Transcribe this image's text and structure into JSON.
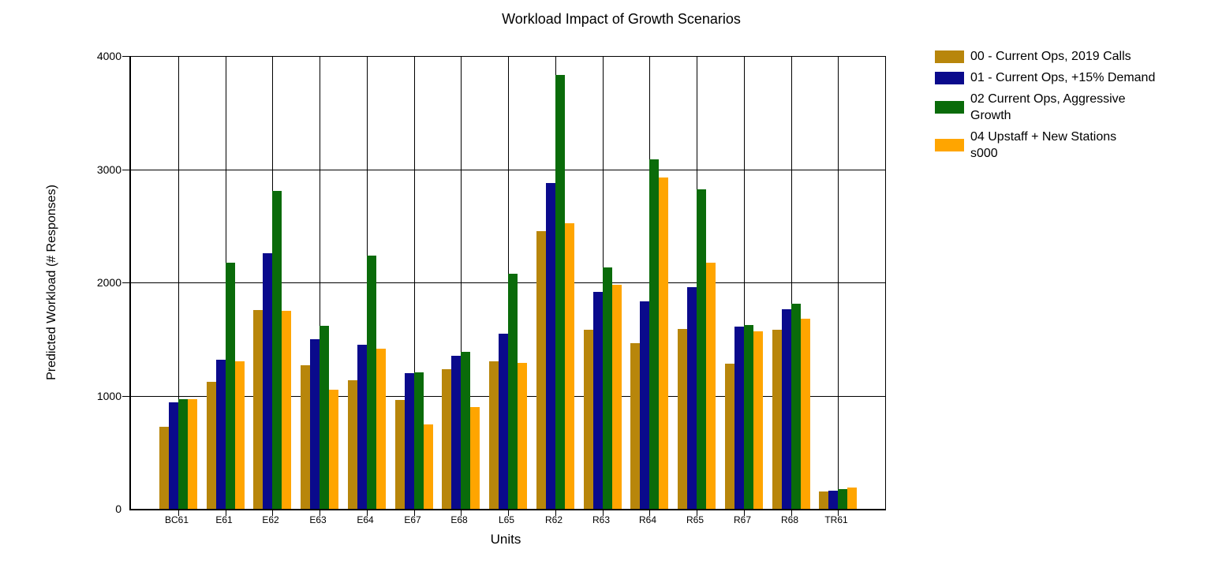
{
  "chart_data": {
    "type": "bar",
    "title": "Workload Impact of Growth Scenarios",
    "xlabel": "Units",
    "ylabel": "Predicted Workload (# Responses)",
    "ylim": [
      0,
      4000
    ],
    "yticks": [
      0,
      1000,
      2000,
      3000,
      4000
    ],
    "grid": true,
    "legend_position": "right",
    "categories": [
      "BC61",
      "E61",
      "E62",
      "E63",
      "E64",
      "E67",
      "E68",
      "L65",
      "R62",
      "R63",
      "R64",
      "R65",
      "R67",
      "R68",
      "TR61"
    ],
    "series": [
      {
        "name": "00 - Current Ops, 2019 Calls",
        "legend_lines": [
          "00 - Current Ops, 2019 Calls"
        ],
        "color": "#B8860B",
        "values": [
          725,
          1120,
          1755,
          1270,
          1135,
          965,
          1235,
          1305,
          2450,
          1580,
          1465,
          1590,
          1285,
          1580,
          150
        ]
      },
      {
        "name": "01 - Current Ops, +15% Demand",
        "legend_lines": [
          "01 - Current Ops, +15% Demand"
        ],
        "color": "#0A0A8C",
        "values": [
          940,
          1315,
          2255,
          1495,
          1450,
          1200,
          1350,
          1545,
          2875,
          1915,
          1835,
          1960,
          1610,
          1760,
          160
        ]
      },
      {
        "name": "02 Current Ops, Aggressive Growth",
        "legend_lines": [
          "02 Current Ops, Aggressive",
          "Growth"
        ],
        "color": "#0A6B0A",
        "values": [
          970,
          2175,
          2805,
          1620,
          2240,
          1205,
          1390,
          2075,
          3830,
          2130,
          3085,
          2825,
          1625,
          1810,
          175
        ]
      },
      {
        "name": "04 Upstaff + New Stations s000",
        "legend_lines": [
          "04 Upstaff + New Stations",
          "s000"
        ],
        "color": "#FFA500",
        "values": [
          970,
          1300,
          1750,
          1050,
          1415,
          745,
          900,
          1290,
          2525,
          1980,
          2930,
          2175,
          1570,
          1680,
          185
        ]
      }
    ]
  }
}
